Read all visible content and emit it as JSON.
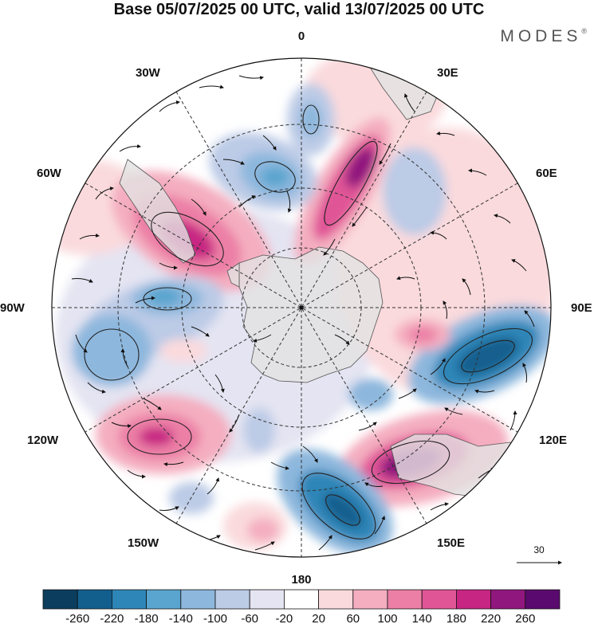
{
  "title": "Base 05/07/2025 00 UTC, valid 13/07/2025 00 UTC",
  "brand": "MODES",
  "brand_mark": "®",
  "longitude_labels": {
    "n": "0",
    "ne": "30E",
    "e60": "60E",
    "e90": "90E",
    "e120": "120E",
    "e150": "150E",
    "s": "180",
    "w150": "150W",
    "w120": "120W",
    "w90": "90W",
    "w60": "60W",
    "w30": "30W"
  },
  "vector_scale": {
    "label": "30",
    "icon": "arrow-right-icon"
  },
  "colorbar": {
    "labels": [
      "-260",
      "-220",
      "-180",
      "-140",
      "-100",
      "-60",
      "-20",
      "20",
      "60",
      "100",
      "140",
      "180",
      "220",
      "260"
    ],
    "colors": [
      "#0b3d5e",
      "#125f8e",
      "#2e86b8",
      "#5aa5cf",
      "#8db7dd",
      "#bccbe6",
      "#e4e4f2",
      "#ffffff",
      "#fadadd",
      "#f4aec0",
      "#ec7fa6",
      "#e05596",
      "#c82683",
      "#90177e",
      "#5a0a6e"
    ]
  },
  "map": {
    "projection": "south-polar-stereographic",
    "land_color": "#e6e6e6",
    "coast_color": "#444444"
  }
}
